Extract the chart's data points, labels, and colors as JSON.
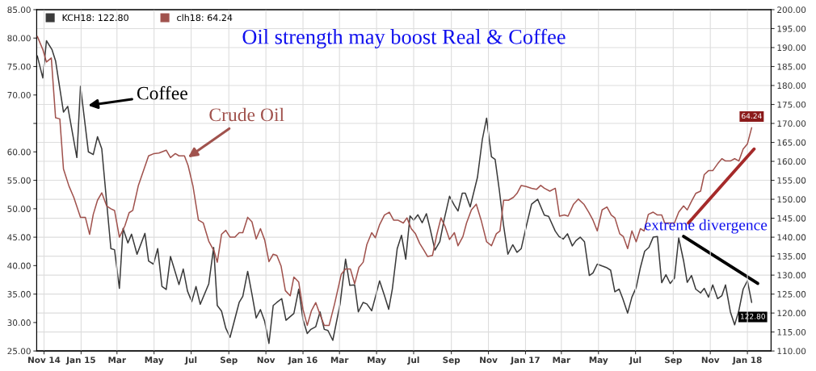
{
  "chart_data": {
    "type": "line",
    "title": "Oil strength may boost Real & Coffee",
    "xlim": [
      "2014-10-20",
      "2018-02-09"
    ],
    "xticks": [
      {
        "value": "2014-11-01",
        "label": "Nov 14"
      },
      {
        "value": "2015-01-01",
        "label": "Jan 15"
      },
      {
        "value": "2015-03-01",
        "label": "Mar"
      },
      {
        "value": "2015-05-01",
        "label": "May"
      },
      {
        "value": "2015-07-01",
        "label": "Jul"
      },
      {
        "value": "2015-09-01",
        "label": "Sep"
      },
      {
        "value": "2015-11-01",
        "label": "Nov"
      },
      {
        "value": "2016-01-01",
        "label": "Jan 16"
      },
      {
        "value": "2016-03-01",
        "label": "Mar"
      },
      {
        "value": "2016-05-01",
        "label": "May"
      },
      {
        "value": "2016-07-01",
        "label": "Jul"
      },
      {
        "value": "2016-09-01",
        "label": "Sep"
      },
      {
        "value": "2016-11-01",
        "label": "Nov"
      },
      {
        "value": "2017-01-01",
        "label": "Jan 17"
      },
      {
        "value": "2017-03-01",
        "label": "Mar"
      },
      {
        "value": "2017-05-01",
        "label": "May"
      },
      {
        "value": "2017-07-01",
        "label": "Jul"
      },
      {
        "value": "2017-09-01",
        "label": "Sep"
      },
      {
        "value": "2017-11-01",
        "label": "Nov"
      },
      {
        "value": "2018-01-01",
        "label": "Jan 18"
      }
    ],
    "ylim": [
      25,
      85
    ],
    "yticks": [
      {
        "value": 25,
        "label": "25.00"
      },
      {
        "value": 30,
        "label": "30.00"
      },
      {
        "value": 35,
        "label": "35.00"
      },
      {
        "value": 40,
        "label": "40.00"
      },
      {
        "value": 45,
        "label": "45.00"
      },
      {
        "value": 50,
        "label": "50.00"
      },
      {
        "value": 55,
        "label": "55.00"
      },
      {
        "value": 60,
        "label": "60.00"
      },
      {
        "value": 65,
        "label": null
      },
      {
        "value": 70,
        "label": "70.00"
      },
      {
        "value": 75,
        "label": "75.00"
      },
      {
        "value": 80,
        "label": "80.00"
      },
      {
        "value": 85,
        "label": "85.00"
      }
    ],
    "y2lim": [
      110,
      200
    ],
    "y2ticks": [
      {
        "value": 110,
        "label": "110.00"
      },
      {
        "value": 115,
        "label": "115.00"
      },
      {
        "value": 120,
        "label": "120.00"
      },
      {
        "value": 125,
        "label": "125.00"
      },
      {
        "value": 130,
        "label": "130.00"
      },
      {
        "value": 135,
        "label": "135.00"
      },
      {
        "value": 140,
        "label": "140.00"
      },
      {
        "value": 145,
        "label": "145.00"
      },
      {
        "value": 150,
        "label": "150.00"
      },
      {
        "value": 155,
        "label": "155.00"
      },
      {
        "value": 160,
        "label": "160.00"
      },
      {
        "value": 165,
        "label": "165.00"
      },
      {
        "value": 170,
        "label": "170.00"
      },
      {
        "value": 175,
        "label": "175.00"
      },
      {
        "value": 180,
        "label": "180.00"
      },
      {
        "value": 185,
        "label": "185.00"
      },
      {
        "value": 190,
        "label": "190.00"
      },
      {
        "value": 195,
        "label": "195.00"
      },
      {
        "value": 200,
        "label": "200.00"
      }
    ],
    "grid": true,
    "legend": "top left",
    "annotations": [
      {
        "text": "Coffee",
        "x": "2015-01-09",
        "y": 68.1
      },
      {
        "text": "Crude Oil",
        "x": "2015-06-23",
        "y": 58.8
      },
      "extreme divergence"
    ],
    "series": [
      {
        "name": "KCH18: 122.80",
        "color": "#3a3a3a",
        "axis": "y2",
        "x": [
          "2014-10-21",
          "2014-10-30",
          "2014-11-05",
          "2014-11-14",
          "2014-11-20",
          "2014-12-03",
          "2014-12-10",
          "2014-12-25",
          "2014-12-31",
          "2015-01-13",
          "2015-01-21",
          "2015-01-28",
          "2015-02-04",
          "2015-02-19",
          "2015-02-25",
          "2015-03-05",
          "2015-03-11",
          "2015-03-19",
          "2015-03-25",
          "2015-04-03",
          "2015-04-16",
          "2015-04-22",
          "2015-04-30",
          "2015-05-07",
          "2015-05-14",
          "2015-05-21",
          "2015-05-28",
          "2015-06-03",
          "2015-06-11",
          "2015-06-18",
          "2015-06-25",
          "2015-07-02",
          "2015-07-09",
          "2015-07-16",
          "2015-07-30",
          "2015-08-07",
          "2015-08-13",
          "2015-08-20",
          "2015-08-27",
          "2015-09-03",
          "2015-09-18",
          "2015-09-24",
          "2015-10-02",
          "2015-10-09",
          "2015-10-16",
          "2015-10-23",
          "2015-10-30",
          "2015-11-06",
          "2015-11-13",
          "2015-11-19",
          "2015-11-27",
          "2015-12-04",
          "2015-12-17",
          "2015-12-25",
          "2016-01-01",
          "2016-01-08",
          "2016-01-14",
          "2016-01-22",
          "2016-01-29",
          "2016-02-05",
          "2016-02-11",
          "2016-02-19",
          "2016-03-02",
          "2016-03-11",
          "2016-03-18",
          "2016-03-26",
          "2016-04-01",
          "2016-04-09",
          "2016-04-15",
          "2016-04-23",
          "2016-04-29",
          "2016-05-06",
          "2016-05-14",
          "2016-05-21",
          "2016-05-27",
          "2016-06-04",
          "2016-06-11",
          "2016-06-18",
          "2016-06-25",
          "2016-07-01",
          "2016-07-08",
          "2016-07-15",
          "2016-07-22",
          "2016-07-28",
          "2016-08-05",
          "2016-08-13",
          "2016-08-20",
          "2016-08-29",
          "2016-09-06",
          "2016-09-12",
          "2016-09-19",
          "2016-09-24",
          "2016-10-02",
          "2016-10-14",
          "2016-10-22",
          "2016-10-29",
          "2016-11-06",
          "2016-11-12",
          "2016-11-19",
          "2016-11-26",
          "2016-12-03",
          "2016-12-11",
          "2016-12-18",
          "2016-12-25",
          "2017-01-02",
          "2017-01-11",
          "2017-01-21",
          "2017-02-01",
          "2017-02-08",
          "2017-02-19",
          "2017-02-25",
          "2017-03-04",
          "2017-03-11",
          "2017-03-19",
          "2017-03-25",
          "2017-04-01",
          "2017-04-08",
          "2017-04-16",
          "2017-04-22",
          "2017-04-29",
          "2017-05-07",
          "2017-05-14",
          "2017-05-21",
          "2017-05-28",
          "2017-06-04",
          "2017-06-10",
          "2017-06-18",
          "2017-06-25",
          "2017-07-02",
          "2017-07-09",
          "2017-07-16",
          "2017-07-23",
          "2017-07-30",
          "2017-08-06",
          "2017-08-13",
          "2017-08-20",
          "2017-08-27",
          "2017-09-03",
          "2017-09-10",
          "2017-09-18",
          "2017-09-24",
          "2017-10-01",
          "2017-10-08",
          "2017-10-16",
          "2017-10-22",
          "2017-10-29",
          "2017-11-05",
          "2017-11-13",
          "2017-11-20",
          "2017-11-26",
          "2017-12-04",
          "2017-12-11",
          "2017-12-18",
          "2017-12-25",
          "2018-01-01",
          "2018-01-08"
        ],
        "values": [
          187.8,
          182,
          191.8,
          189.5,
          186.5,
          173,
          174.5,
          161,
          179.8,
          162.5,
          161.8,
          166.5,
          163.3,
          137,
          136.7,
          126.5,
          142.3,
          138.5,
          140.8,
          135.5,
          141,
          133.7,
          132.9,
          137,
          127,
          126.2,
          134.9,
          131.8,
          127.5,
          131.6,
          125.8,
          123,
          127,
          122.3,
          127.7,
          137.3,
          122,
          120.5,
          116,
          113.6,
          122.8,
          124.4,
          131,
          125,
          118.7,
          120.9,
          117.8,
          112,
          122,
          122.8,
          123.8,
          118.1,
          119.9,
          126.3,
          118.3,
          114.6,
          115.7,
          116.4,
          120.3,
          115.7,
          115.4,
          112.8,
          122.4,
          134.2,
          127.3,
          127.4,
          120.3,
          122.8,
          122.4,
          120.6,
          124.2,
          128.5,
          124.6,
          121,
          126.4,
          137,
          140.5,
          134.2,
          145.6,
          144.5,
          145.9,
          143.8,
          146.2,
          142.3,
          136.6,
          138.8,
          144.5,
          150.8,
          148.4,
          146.9,
          151.6,
          151.6,
          148,
          155.8,
          165.8,
          171.4,
          161.2,
          160.5,
          152.3,
          143,
          135.5,
          138,
          136,
          137,
          142.7,
          148.7,
          150,
          145.8,
          145.5,
          141.6,
          140.2,
          139.5,
          140.9,
          137.7,
          139.1,
          140,
          138.8,
          129.9,
          130.6,
          132.9,
          132.4,
          132,
          131.3,
          125.6,
          126.3,
          123.8,
          120,
          124.2,
          126.7,
          132,
          136.3,
          137.3,
          140,
          140.2,
          128,
          130.1,
          127.8,
          129.2,
          139.8,
          133.8,
          128.1,
          129.9,
          126.3,
          125.3,
          126.5,
          124.2,
          127.4,
          123.8,
          124.6,
          127.4,
          120.3,
          116.9,
          120.7,
          126.3,
          128.5,
          122.8
        ],
        "value_labels": [
          null,
          null,
          null,
          null,
          null,
          null,
          null,
          null,
          null,
          null,
          null,
          null,
          null,
          null,
          null,
          null,
          null,
          null,
          null,
          null,
          null,
          null,
          null,
          null,
          null,
          null,
          null,
          null,
          null,
          null,
          null,
          null,
          null,
          null,
          null,
          null,
          null,
          null,
          null,
          null,
          null,
          null,
          null,
          null,
          null,
          null,
          null,
          null,
          null,
          null,
          null,
          null,
          null,
          null,
          null,
          null,
          null,
          null,
          null,
          null,
          null,
          null,
          null,
          null,
          null,
          null,
          null,
          null,
          null,
          null,
          null,
          null,
          null,
          null,
          null,
          null,
          null,
          null,
          null,
          null,
          null,
          null,
          null,
          null,
          null,
          null,
          null,
          null,
          null,
          null,
          null,
          null,
          null,
          null,
          null,
          null,
          null,
          null,
          null,
          null,
          null,
          null,
          null,
          null,
          null,
          null,
          null,
          null,
          null,
          null,
          null,
          null,
          null,
          null,
          null,
          null,
          null,
          null,
          null,
          null,
          null,
          null,
          null,
          null,
          null,
          null,
          null,
          null,
          null,
          null,
          null,
          null,
          null,
          null,
          null,
          null,
          null,
          null,
          null,
          null,
          null,
          null,
          null,
          null,
          null,
          null,
          null,
          null,
          null,
          null,
          null,
          null,
          null,
          null,
          null,
          "122.80"
        ]
      },
      {
        "name": "clh18: 64.24",
        "color": "#a0524d",
        "axis": "y",
        "x": [
          "2014-10-21",
          "2014-10-30",
          "2014-11-05",
          "2014-11-13",
          "2014-11-20",
          "2014-11-27",
          "2014-12-03",
          "2014-12-12",
          "2014-12-20",
          "2014-12-31",
          "2015-01-08",
          "2015-01-15",
          "2015-01-21",
          "2015-01-28",
          "2015-02-04",
          "2015-02-12",
          "2015-02-19",
          "2015-02-25",
          "2015-03-05",
          "2015-03-14",
          "2015-03-21",
          "2015-03-27",
          "2015-04-05",
          "2015-04-14",
          "2015-04-22",
          "2015-05-01",
          "2015-05-09",
          "2015-05-21",
          "2015-05-28",
          "2015-06-05",
          "2015-06-11",
          "2015-06-20",
          "2015-06-26",
          "2015-07-04",
          "2015-07-13",
          "2015-07-21",
          "2015-07-30",
          "2015-08-08",
          "2015-08-13",
          "2015-08-20",
          "2015-08-27",
          "2015-09-03",
          "2015-09-11",
          "2015-09-18",
          "2015-09-24",
          "2015-10-02",
          "2015-10-09",
          "2015-10-16",
          "2015-10-23",
          "2015-10-30",
          "2015-11-06",
          "2015-11-13",
          "2015-11-19",
          "2015-11-26",
          "2015-12-03",
          "2015-12-11",
          "2015-12-17",
          "2015-12-25",
          "2016-01-01",
          "2016-01-08",
          "2016-01-15",
          "2016-01-22",
          "2016-01-29",
          "2016-02-05",
          "2016-02-13",
          "2016-02-22",
          "2016-03-04",
          "2016-03-11",
          "2016-03-19",
          "2016-03-26",
          "2016-04-02",
          "2016-04-09",
          "2016-04-15",
          "2016-04-23",
          "2016-04-29",
          "2016-05-06",
          "2016-05-14",
          "2016-05-22",
          "2016-05-29",
          "2016-06-05",
          "2016-06-14",
          "2016-06-20",
          "2016-06-27",
          "2016-07-04",
          "2016-07-11",
          "2016-07-18",
          "2016-07-24",
          "2016-08-01",
          "2016-08-08",
          "2016-08-15",
          "2016-08-22",
          "2016-08-29",
          "2016-09-06",
          "2016-09-12",
          "2016-09-20",
          "2016-09-26",
          "2016-10-04",
          "2016-10-12",
          "2016-10-20",
          "2016-10-29",
          "2016-11-06",
          "2016-11-14",
          "2016-11-20",
          "2016-11-26",
          "2016-12-04",
          "2016-12-12",
          "2016-12-18",
          "2016-12-25",
          "2017-01-02",
          "2017-01-11",
          "2017-01-19",
          "2017-01-26",
          "2017-02-01",
          "2017-02-10",
          "2017-02-19",
          "2017-02-26",
          "2017-03-06",
          "2017-03-12",
          "2017-03-21",
          "2017-03-29",
          "2017-04-07",
          "2017-04-15",
          "2017-04-22",
          "2017-04-29",
          "2017-05-07",
          "2017-05-15",
          "2017-05-22",
          "2017-05-28",
          "2017-06-05",
          "2017-06-11",
          "2017-06-18",
          "2017-06-25",
          "2017-07-02",
          "2017-07-09",
          "2017-07-15",
          "2017-07-22",
          "2017-07-30",
          "2017-08-06",
          "2017-08-13",
          "2017-08-18",
          "2017-08-27",
          "2017-09-03",
          "2017-09-10",
          "2017-09-18",
          "2017-09-24",
          "2017-10-01",
          "2017-10-08",
          "2017-10-16",
          "2017-10-22",
          "2017-10-29",
          "2017-11-05",
          "2017-11-13",
          "2017-11-20",
          "2017-11-26",
          "2017-12-04",
          "2017-12-11",
          "2017-12-18",
          "2017-12-25",
          "2018-01-01",
          "2018-01-08"
        ],
        "values": [
          80.3,
          78,
          75.8,
          76.5,
          66,
          65.8,
          57,
          54,
          52,
          48.5,
          48.5,
          45.5,
          49,
          51.5,
          52.8,
          50.5,
          50,
          49.7,
          45,
          47,
          49.3,
          49.7,
          54,
          56.8,
          59.3,
          59.7,
          59.8,
          60.3,
          59,
          59.7,
          59.3,
          59.3,
          57.6,
          54,
          48,
          47.5,
          44.3,
          42.5,
          40.6,
          45.5,
          46.2,
          45,
          45,
          45.8,
          45.8,
          48.5,
          47.7,
          44.7,
          46.5,
          44.5,
          40.7,
          42,
          41.8,
          39.9,
          35.6,
          34.7,
          38,
          37.1,
          32.3,
          29.5,
          32.1,
          33.5,
          31.4,
          29.5,
          29.5,
          33.3,
          38.5,
          39.4,
          39.4,
          36.8,
          39.7,
          40.6,
          43.7,
          45.8,
          44.9,
          47.2,
          48.9,
          49.4,
          48,
          48,
          47.5,
          48.4,
          46.5,
          45.6,
          43.9,
          42.7,
          41.6,
          41.8,
          45.4,
          48.4,
          46.8,
          44.6,
          45.8,
          43.5,
          45.1,
          47.5,
          49.8,
          50.8,
          48,
          44.2,
          43.5,
          45.6,
          46.1,
          51.5,
          51.5,
          52,
          52.7,
          54.1,
          53.9,
          53.6,
          53.4,
          54.1,
          53.6,
          53.1,
          53.6,
          48.7,
          48.9,
          48.7,
          50.8,
          51.7,
          50.8,
          49.4,
          48,
          46.1,
          49.8,
          50.3,
          48.9,
          48.4,
          45.6,
          45.1,
          43,
          46.1,
          44.2,
          46.5,
          46.1,
          49,
          49.4,
          48.9,
          48.9,
          47.5,
          47.5,
          47.5,
          49.4,
          50.5,
          49.8,
          51.3,
          52.7,
          53.1,
          56,
          56.7,
          56.7,
          57.9,
          58.8,
          58.4,
          58.4,
          58.8,
          58.4,
          60.5,
          61.4,
          64.24
        ],
        "value_labels": [
          null,
          null,
          null,
          null,
          null,
          null,
          null,
          null,
          null,
          null,
          null,
          null,
          null,
          null,
          null,
          null,
          null,
          null,
          null,
          null,
          null,
          null,
          null,
          null,
          null,
          null,
          null,
          null,
          null,
          null,
          null,
          null,
          null,
          null,
          null,
          null,
          null,
          null,
          null,
          null,
          null,
          null,
          null,
          null,
          null,
          null,
          null,
          null,
          null,
          null,
          null,
          null,
          null,
          null,
          null,
          null,
          null,
          null,
          null,
          null,
          null,
          null,
          null,
          null,
          null,
          null,
          null,
          null,
          null,
          null,
          null,
          null,
          null,
          null,
          null,
          null,
          null,
          null,
          null,
          null,
          null,
          null,
          null,
          null,
          null,
          null,
          null,
          null,
          null,
          null,
          null,
          null,
          null,
          null,
          null,
          null,
          null,
          null,
          null,
          null,
          null,
          null,
          null,
          null,
          null,
          null,
          null,
          null,
          null,
          null,
          null,
          null,
          null,
          null,
          null,
          null,
          null,
          null,
          null,
          null,
          null,
          null,
          null,
          null,
          null,
          null,
          null,
          null,
          null,
          null,
          null,
          null,
          null,
          null,
          null,
          null,
          null,
          null,
          null,
          null,
          null,
          null,
          null,
          null,
          null,
          null,
          null,
          null,
          null,
          null,
          null,
          null,
          null,
          null,
          null,
          null,
          null,
          null,
          null,
          "64.24"
        ]
      },
      {
        "type": "line",
        "color": "#a52a2a",
        "axis": "y",
        "x": [
          "2017-09-26",
          "2018-01-12"
        ],
        "values": [
          47.5,
          60.5
        ]
      },
      {
        "type": "line",
        "color": "#000000",
        "axis": "y2",
        "x": [
          "2017-09-18",
          "2018-01-18"
        ],
        "values": [
          140.2,
          127.8
        ]
      }
    ]
  }
}
